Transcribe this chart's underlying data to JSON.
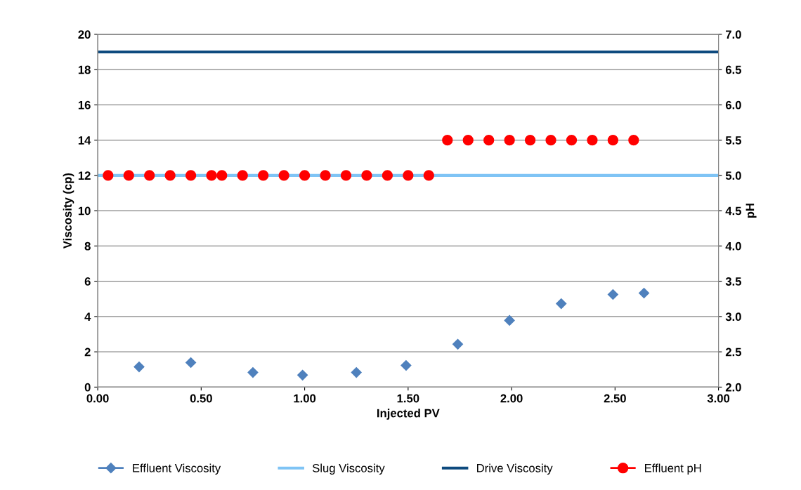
{
  "chart_data": {
    "type": "scatter",
    "xlabel": "Injected PV",
    "ylabel": "Viscosity (cp)",
    "y2label": "pH",
    "xlim": [
      0,
      3
    ],
    "xticks": [
      {
        "value": 0,
        "label": "0.00"
      },
      {
        "value": 0.5,
        "label": "0.50"
      },
      {
        "value": 1,
        "label": "1.00"
      },
      {
        "value": 1.5,
        "label": "1.50"
      },
      {
        "value": 2,
        "label": "2.00"
      },
      {
        "value": 2.5,
        "label": "2.50"
      },
      {
        "value": 3,
        "label": "3.00"
      }
    ],
    "ylim": [
      0,
      20
    ],
    "yticks": [
      0,
      2,
      4,
      6,
      8,
      10,
      12,
      14,
      16,
      18,
      20
    ],
    "y2lim": [
      2,
      7
    ],
    "y2ticks": [
      {
        "value": 2,
        "label": "2.0"
      },
      {
        "value": 2.5,
        "label": "2.5"
      },
      {
        "value": 3,
        "label": "3.0"
      },
      {
        "value": 3.5,
        "label": "3.5"
      },
      {
        "value": 4,
        "label": "4.0"
      },
      {
        "value": 4.5,
        "label": "4.5"
      },
      {
        "value": 5,
        "label": "5.0"
      },
      {
        "value": 5.5,
        "label": "5.5"
      },
      {
        "value": 6,
        "label": "6.0"
      },
      {
        "value": 6.5,
        "label": "6.5"
      },
      {
        "value": 7,
        "label": "7.0"
      }
    ],
    "grid": "y",
    "legend": "bottom",
    "series": [
      {
        "name": "Effluent Viscosity",
        "marker": "diamond",
        "color": "#4f81bd",
        "x": [
          0.2,
          0.45,
          0.75,
          0.99,
          1.25,
          1.49,
          1.74,
          1.99,
          2.24,
          2.49,
          2.64
        ],
        "values": [
          1.15,
          1.39,
          0.83,
          0.68,
          0.83,
          1.23,
          2.43,
          3.78,
          4.73,
          5.25,
          5.33
        ]
      },
      {
        "name": "Slug Viscosity",
        "type": "line",
        "marker": "none",
        "color": "#7fc4f5",
        "x": [
          0,
          3
        ],
        "values": [
          12,
          12
        ]
      },
      {
        "name": "Drive Viscosity",
        "type": "line",
        "marker": "none",
        "color": "#0e4a7e",
        "x": [
          0,
          3
        ],
        "values": [
          19,
          19
        ]
      },
      {
        "name": "Effluent pH",
        "marker": "circle",
        "axis": "y2",
        "color": "#ff0000",
        "x": [
          0.05,
          0.15,
          0.25,
          0.35,
          0.45,
          0.55,
          0.6,
          0.7,
          0.8,
          0.9,
          1.0,
          1.1,
          1.2,
          1.3,
          1.4,
          1.5,
          1.6,
          1.69,
          1.79,
          1.89,
          1.99,
          2.09,
          2.19,
          2.29,
          2.39,
          2.49,
          2.59
        ],
        "values": [
          5,
          5,
          5,
          5,
          5,
          5,
          5,
          5,
          5,
          5,
          5,
          5,
          5,
          5,
          5,
          5,
          5,
          5.5,
          5.5,
          5.5,
          5.5,
          5.5,
          5.5,
          5.5,
          5.5,
          5.5,
          5.5
        ]
      }
    ]
  }
}
